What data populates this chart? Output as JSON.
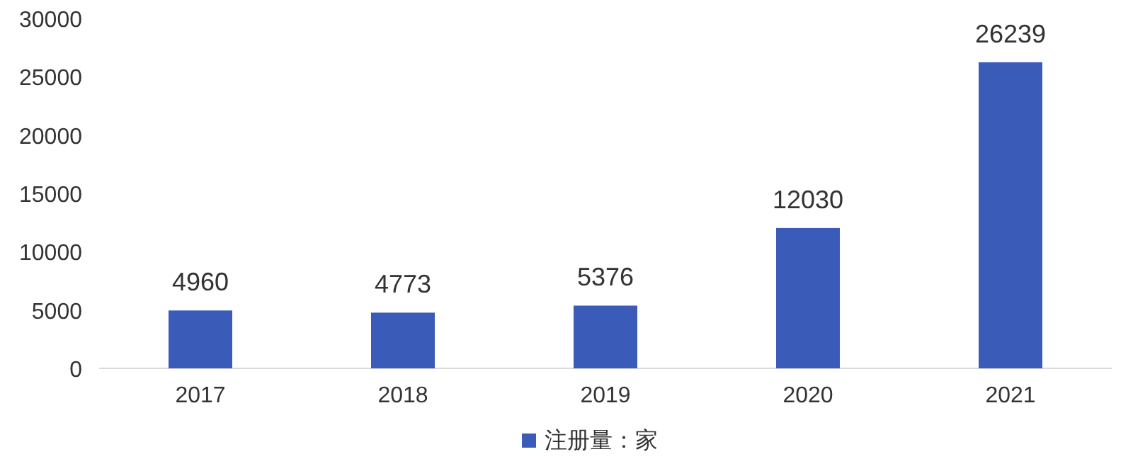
{
  "chart_data": {
    "type": "bar",
    "categories": [
      "2017",
      "2018",
      "2019",
      "2020",
      "2021"
    ],
    "series": [
      {
        "name": "注册量：家",
        "color": "#3a5cb8",
        "values": [
          4960,
          4773,
          5376,
          12030,
          26239
        ]
      }
    ],
    "ylim": [
      0,
      30000
    ],
    "yticks": [
      0,
      5000,
      10000,
      15000,
      20000,
      25000,
      30000
    ],
    "data_labels": true,
    "legend": "bottom",
    "grid": false
  }
}
